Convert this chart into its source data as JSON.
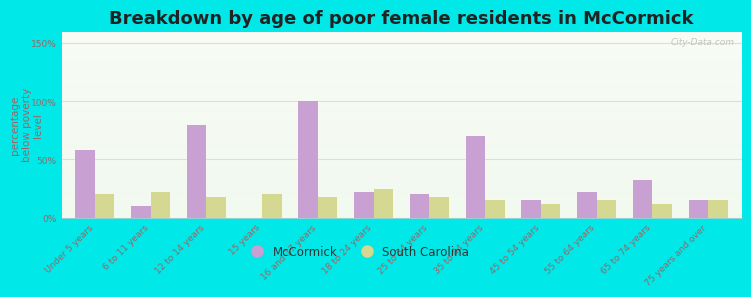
{
  "title": "Breakdown by age of poor female residents in McCormick",
  "ylabel": "percentage\nbelow poverty\nlevel",
  "categories": [
    "Under 5 years",
    "6 to 11 years",
    "12 to 14 years",
    "15 years",
    "16 and 17 years",
    "18 to 24 years",
    "25 to 34 years",
    "35 to 44 years",
    "45 to 54 years",
    "55 to 64 years",
    "65 to 74 years",
    "75 years and over"
  ],
  "mccormick_values": [
    58,
    10,
    80,
    0,
    100,
    22,
    20,
    70,
    15,
    22,
    32,
    15
  ],
  "sc_values": [
    20,
    22,
    18,
    20,
    18,
    25,
    18,
    15,
    12,
    15,
    12,
    15
  ],
  "mccormick_color": "#c8a0d2",
  "sc_color": "#d4d890",
  "background_color": "#00e8e8",
  "bar_width": 0.35,
  "ylim": [
    0,
    160
  ],
  "yticks": [
    0,
    50,
    100,
    150
  ],
  "ytick_labels": [
    "0%",
    "50%",
    "100%",
    "150%"
  ],
  "legend_mccormick": "McCormick",
  "legend_sc": "South Carolina",
  "title_fontsize": 13,
  "axis_label_fontsize": 7.5,
  "tick_fontsize": 6.5,
  "watermark": "City-Data.com",
  "label_color": "#996666",
  "grid_color": "#e0e0d0"
}
